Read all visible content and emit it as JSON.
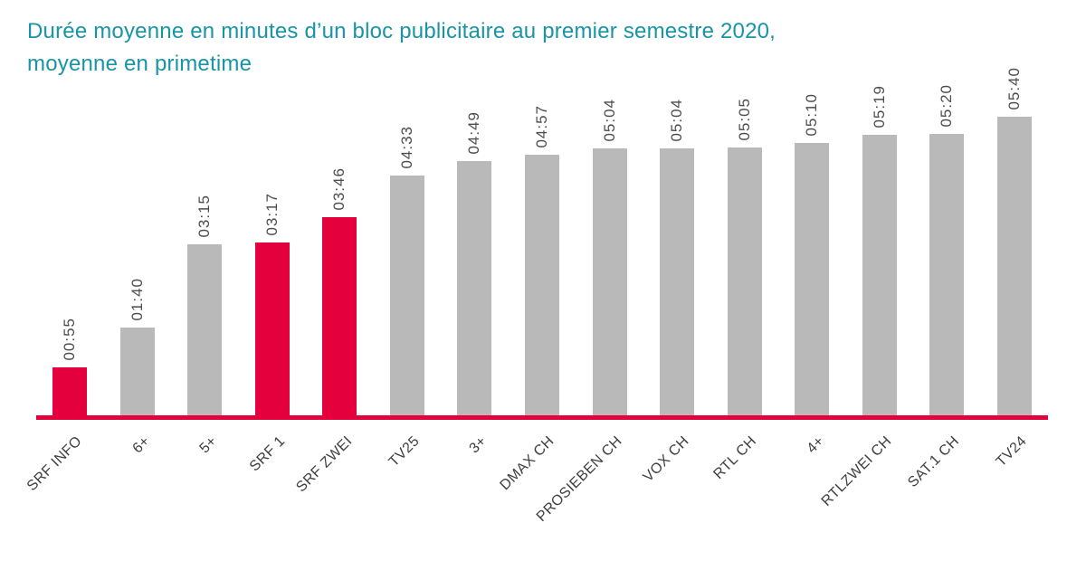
{
  "header": {
    "title_lines": [
      "Durée moyenne en minutes d’un bloc publicitaire au premier semestre 2020,",
      "moyenne en primetime"
    ],
    "title_color": "#1894A8"
  },
  "chart_data": {
    "type": "bar",
    "title": "Durée moyenne en minutes d’un bloc publicitaire au premier semestre 2020, moyenne en primetime",
    "xlabel": "",
    "ylabel": "",
    "unit": "mm:ss",
    "grid": false,
    "legend": false,
    "value_label_rotation_deg": 90,
    "category_label_rotation_deg": 45,
    "ylim_seconds": [
      0,
      340
    ],
    "categories": [
      "SRF INFO",
      "6+",
      "5+",
      "SRF 1",
      "SRF ZWEI",
      "TV25",
      "3+",
      "DMAX CH",
      "PROSIEBEN CH",
      "VOX CH",
      "RTL CH",
      "4+",
      "RTLZWEI CH",
      "SAT.1 CH",
      "TV24"
    ],
    "values": [
      "00:55",
      "01:40",
      "03:15",
      "03:17",
      "03:46",
      "04:33",
      "04:49",
      "04:57",
      "05:04",
      "05:04",
      "05:05",
      "05:10",
      "05:19",
      "05:20",
      "05:40"
    ],
    "values_seconds": [
      55,
      100,
      195,
      197,
      226,
      273,
      289,
      297,
      304,
      304,
      305,
      310,
      319,
      320,
      340
    ],
    "highlight_indices": [
      0,
      3,
      4
    ],
    "highlighted_categories": [
      "SRF INFO",
      "SRF 1",
      "SRF ZWEI"
    ],
    "colors": {
      "bar_default": "#B9B9B9",
      "bar_highlight": "#E4003C",
      "axis_line": "#E4003C",
      "value_label": "#4D4D4F",
      "category_label": "#3F3E40"
    }
  }
}
